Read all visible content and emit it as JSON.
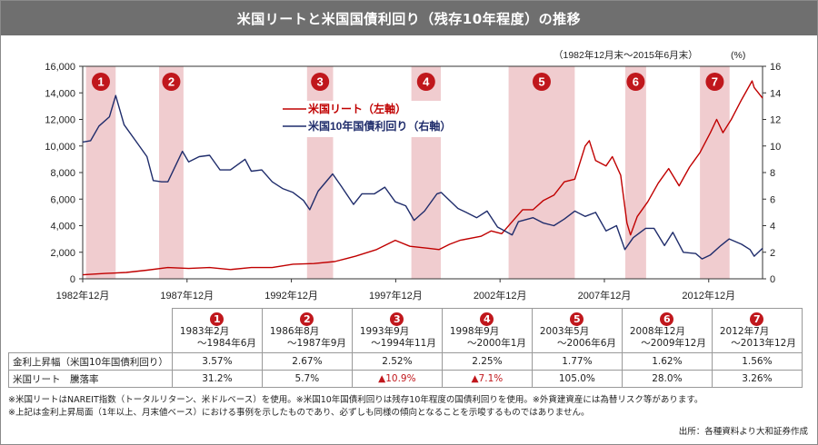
{
  "title": "米国リートと米国国債利回り（残存10年程度）の推移",
  "period_note": "（1982年12月末～2015年6月末）",
  "right_unit": "(%)",
  "colors": {
    "reit": "#c00000",
    "bond": "#1f2c6b",
    "band": "#f0cccf",
    "badge": "#c0171c"
  },
  "chart_data": {
    "type": "line",
    "x_tick_labels": [
      "1982年12月",
      "1987年12月",
      "1992年12月",
      "1997年12月",
      "2002年12月",
      "2007年12月",
      "2012年12月"
    ],
    "x_ticks": [
      1982.92,
      1987.92,
      1992.92,
      1997.92,
      2002.92,
      2007.92,
      2012.92
    ],
    "xlim": [
      1982.92,
      2015.5
    ],
    "left_axis": {
      "range": [
        0,
        16000
      ],
      "ticks": [
        "0",
        "2,000",
        "4,000",
        "6,000",
        "8,000",
        "10,000",
        "12,000",
        "14,000",
        "16,000"
      ]
    },
    "right_axis": {
      "range": [
        0,
        16
      ],
      "ticks": [
        "0",
        "2",
        "4",
        "6",
        "8",
        "10",
        "12",
        "14",
        "16"
      ]
    },
    "bands": [
      {
        "label": "1",
        "from": 1983.08,
        "to": 1984.5
      },
      {
        "label": "2",
        "from": 1986.58,
        "to": 1987.75
      },
      {
        "label": "3",
        "from": 1993.67,
        "to": 1994.92
      },
      {
        "label": "4",
        "from": 1998.67,
        "to": 2000.08
      },
      {
        "label": "5",
        "from": 2003.33,
        "to": 2006.5
      },
      {
        "label": "6",
        "from": 2008.92,
        "to": 2009.92
      },
      {
        "label": "7",
        "from": 2012.5,
        "to": 2013.92
      }
    ],
    "series": [
      {
        "name": "米国リート（左軸）",
        "axis": "left",
        "points": [
          [
            1982.92,
            300
          ],
          [
            1984,
            400
          ],
          [
            1985,
            480
          ],
          [
            1986,
            650
          ],
          [
            1987,
            850
          ],
          [
            1988,
            780
          ],
          [
            1989,
            850
          ],
          [
            1990,
            700
          ],
          [
            1991,
            850
          ],
          [
            1992,
            850
          ],
          [
            1993,
            1100
          ],
          [
            1994,
            1150
          ],
          [
            1995,
            1300
          ],
          [
            1996,
            1700
          ],
          [
            1997,
            2200
          ],
          [
            1997.9,
            2900
          ],
          [
            1998.6,
            2450
          ],
          [
            1999.5,
            2300
          ],
          [
            2000,
            2200
          ],
          [
            2000.5,
            2600
          ],
          [
            2001,
            2900
          ],
          [
            2002,
            3200
          ],
          [
            2002.5,
            3600
          ],
          [
            2003,
            3400
          ],
          [
            2003.5,
            4300
          ],
          [
            2004,
            5200
          ],
          [
            2004.5,
            5200
          ],
          [
            2005,
            5900
          ],
          [
            2005.5,
            6300
          ],
          [
            2006,
            7300
          ],
          [
            2006.5,
            7500
          ],
          [
            2007,
            10000
          ],
          [
            2007.2,
            10400
          ],
          [
            2007.5,
            8900
          ],
          [
            2008,
            8500
          ],
          [
            2008.3,
            9200
          ],
          [
            2008.7,
            7800
          ],
          [
            2009.0,
            4200
          ],
          [
            2009.17,
            3300
          ],
          [
            2009.5,
            4700
          ],
          [
            2010,
            5800
          ],
          [
            2010.5,
            7200
          ],
          [
            2011,
            8300
          ],
          [
            2011.5,
            7000
          ],
          [
            2012,
            8400
          ],
          [
            2012.5,
            9500
          ],
          [
            2013,
            11000
          ],
          [
            2013.3,
            12000
          ],
          [
            2013.6,
            11000
          ],
          [
            2014,
            12000
          ],
          [
            2014.5,
            13500
          ],
          [
            2015,
            14900
          ],
          [
            2015.1,
            14400
          ],
          [
            2015.5,
            13600
          ]
        ]
      },
      {
        "name": "米国10年国債利回り（右軸）",
        "axis": "right",
        "points": [
          [
            1982.92,
            10.3
          ],
          [
            1983.3,
            10.4
          ],
          [
            1983.7,
            11.5
          ],
          [
            1984.2,
            12.2
          ],
          [
            1984.5,
            13.8
          ],
          [
            1984.9,
            11.6
          ],
          [
            1985.5,
            10.3
          ],
          [
            1986,
            9.2
          ],
          [
            1986.3,
            7.4
          ],
          [
            1986.7,
            7.3
          ],
          [
            1987,
            7.3
          ],
          [
            1987.7,
            9.6
          ],
          [
            1988,
            8.8
          ],
          [
            1988.5,
            9.2
          ],
          [
            1989,
            9.3
          ],
          [
            1989.5,
            8.2
          ],
          [
            1990,
            8.2
          ],
          [
            1990.7,
            9.0
          ],
          [
            1991,
            8.1
          ],
          [
            1991.5,
            8.2
          ],
          [
            1992,
            7.3
          ],
          [
            1992.5,
            6.8
          ],
          [
            1993,
            6.5
          ],
          [
            1993.5,
            5.9
          ],
          [
            1993.8,
            5.2
          ],
          [
            1994.2,
            6.6
          ],
          [
            1994.9,
            7.9
          ],
          [
            1995.3,
            7.0
          ],
          [
            1995.9,
            5.6
          ],
          [
            1996.3,
            6.4
          ],
          [
            1996.9,
            6.4
          ],
          [
            1997.4,
            6.9
          ],
          [
            1997.9,
            5.8
          ],
          [
            1998.4,
            5.5
          ],
          [
            1998.8,
            4.4
          ],
          [
            1999.3,
            5.1
          ],
          [
            1999.9,
            6.4
          ],
          [
            2000.1,
            6.5
          ],
          [
            2000.9,
            5.3
          ],
          [
            2001.3,
            5.0
          ],
          [
            2001.8,
            4.6
          ],
          [
            2002.3,
            5.1
          ],
          [
            2002.8,
            3.9
          ],
          [
            2003.5,
            3.3
          ],
          [
            2003.8,
            4.3
          ],
          [
            2004.5,
            4.6
          ],
          [
            2005,
            4.2
          ],
          [
            2005.5,
            4.0
          ],
          [
            2006,
            4.5
          ],
          [
            2006.5,
            5.1
          ],
          [
            2007,
            4.7
          ],
          [
            2007.5,
            5.0
          ],
          [
            2008,
            3.6
          ],
          [
            2008.5,
            4.0
          ],
          [
            2008.9,
            2.2
          ],
          [
            2009.3,
            3.1
          ],
          [
            2009.9,
            3.8
          ],
          [
            2010.3,
            3.8
          ],
          [
            2010.8,
            2.5
          ],
          [
            2011.2,
            3.5
          ],
          [
            2011.7,
            2.0
          ],
          [
            2012.3,
            1.9
          ],
          [
            2012.6,
            1.5
          ],
          [
            2013,
            1.8
          ],
          [
            2013.5,
            2.5
          ],
          [
            2013.9,
            3.0
          ],
          [
            2014.5,
            2.6
          ],
          [
            2014.9,
            2.2
          ],
          [
            2015.1,
            1.7
          ],
          [
            2015.5,
            2.3
          ]
        ]
      }
    ]
  },
  "table": {
    "headers": [
      {
        "no": "1",
        "start": "1983年2月",
        "end": "～1984年6月"
      },
      {
        "no": "2",
        "start": "1986年8月",
        "end": "～1987年9月"
      },
      {
        "no": "3",
        "start": "1993年9月",
        "end": "～1994年11月"
      },
      {
        "no": "4",
        "start": "1998年9月",
        "end": "～2000年1月"
      },
      {
        "no": "5",
        "start": "2003年5月",
        "end": "～2006年6月"
      },
      {
        "no": "6",
        "start": "2008年12月",
        "end": "～2009年12月"
      },
      {
        "no": "7",
        "start": "2012年7月",
        "end": "～2013年12月"
      }
    ],
    "rows": [
      {
        "label": "金利上昇幅（米国10年国債利回り）",
        "values": [
          "3.57%",
          "2.67%",
          "2.52%",
          "2.25%",
          "1.77%",
          "1.62%",
          "1.56%"
        ]
      },
      {
        "label": "米国リート　騰落率",
        "values": [
          "31.2%",
          "5.7%",
          "▲10.9%",
          "▲7.1%",
          "105.0%",
          "28.0%",
          "3.26%"
        ]
      }
    ]
  },
  "notes": [
    "※米国リートはNAREIT指数（トータルリターン、米ドルベース）を使用。※米国10年国債利回りは残存10年程度の国債利回りを使用。※外貨建資産には為替リスク等があります。",
    "※上記は金利上昇局面（1年以上、月末値ベース）における事例を示したものであり、必ずしも同様の傾向となることを示唆するものではありません。"
  ],
  "source": "出所：各種資料より大和証券作成"
}
